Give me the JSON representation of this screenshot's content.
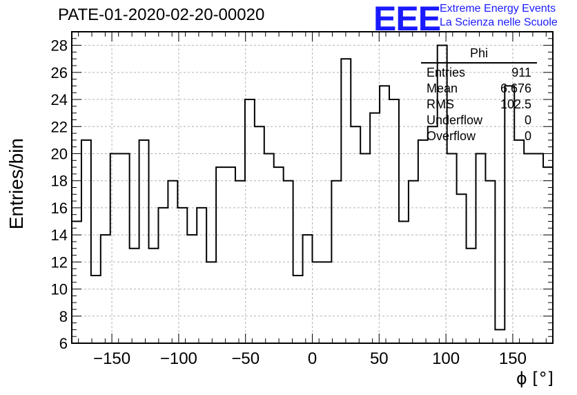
{
  "header": {
    "run_title": "PATE-01-2020-02-20-00020",
    "logo_text": "EEE",
    "logo_line1": "Extreme Energy Events",
    "logo_line2": "La Scienza nelle Scuole",
    "logo_color": "#1a1aff"
  },
  "stats_box": {
    "title": "Phi",
    "rows": [
      {
        "label": "Entries",
        "value": "911"
      },
      {
        "label": "Mean",
        "value": "6.676"
      },
      {
        "label": "RMS",
        "value": "102.5"
      },
      {
        "label": "Underflow",
        "value": "0"
      },
      {
        "label": "Overflow",
        "value": "0"
      }
    ]
  },
  "chart_data": {
    "type": "bar",
    "histogram": true,
    "title": "PATE-01-2020-02-20-00020",
    "xlabel": "ϕ [°]",
    "ylabel": "Entries/bin",
    "xlim": [
      -180,
      180
    ],
    "ylim": [
      6,
      29
    ],
    "bin_width": 7.2,
    "grid": true,
    "x_ticks": [
      -150,
      -100,
      -50,
      0,
      50,
      100,
      150
    ],
    "x_tick_labels": [
      "−150",
      "−100",
      "−50",
      "0",
      "50",
      "100",
      "150"
    ],
    "y_ticks": [
      6,
      8,
      10,
      12,
      14,
      16,
      18,
      20,
      22,
      24,
      26,
      28
    ],
    "y_tick_labels": [
      "6",
      "8",
      "10",
      "12",
      "14",
      "16",
      "18",
      "20",
      "22",
      "24",
      "26",
      "28"
    ],
    "values": [
      15,
      21,
      11,
      14,
      20,
      20,
      13,
      21,
      13,
      16,
      18,
      16,
      14,
      16,
      12,
      19,
      19,
      18,
      24,
      22,
      20,
      19,
      18,
      11,
      14,
      12,
      12,
      18,
      27,
      22,
      20,
      23,
      25,
      24,
      15,
      18,
      21,
      22,
      28,
      20,
      17,
      13,
      20,
      18,
      7,
      25,
      21,
      20,
      20,
      19
    ]
  }
}
